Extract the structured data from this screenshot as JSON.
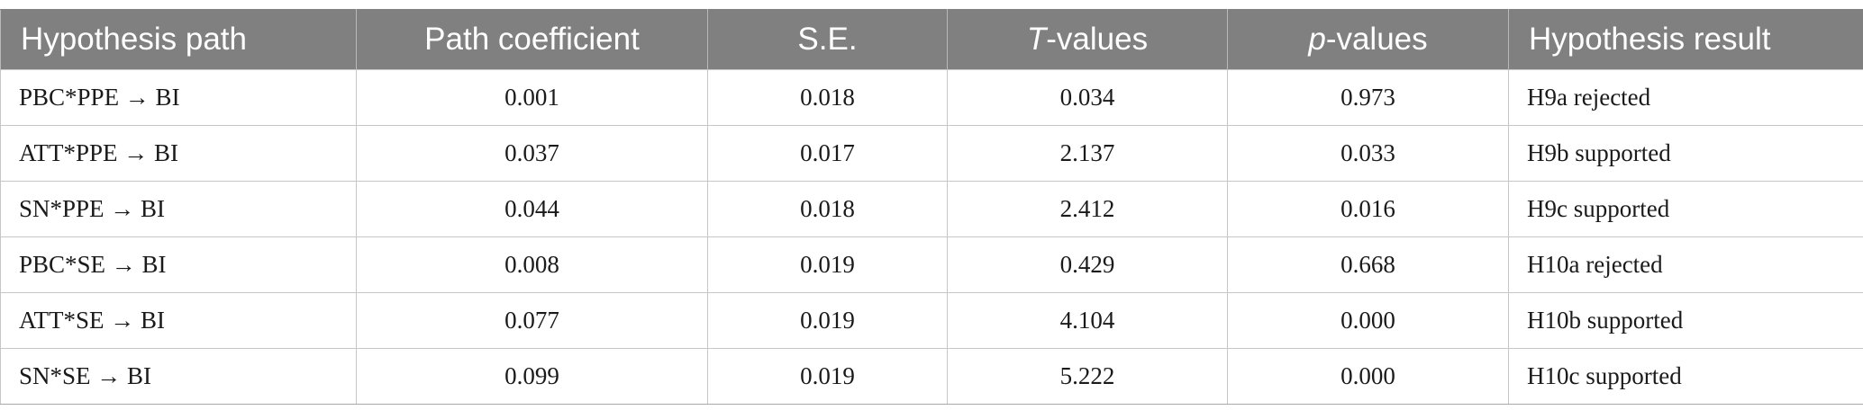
{
  "header": {
    "hypothesis_path": "Hypothesis path",
    "path_coefficient": "Path coefficient",
    "se": "S.E.",
    "t_values_italic": "T",
    "t_values_rest": "-values",
    "p_values_italic": "p",
    "p_values_rest": "-values",
    "hypothesis_result": "Hypothesis result"
  },
  "rows": [
    {
      "path": "PBC*PPE → BI",
      "coef": "0.001",
      "se": "0.018",
      "t": "0.034",
      "p": "0.973",
      "result": "H9a rejected"
    },
    {
      "path": "ATT*PPE → BI",
      "coef": "0.037",
      "se": "0.017",
      "t": "2.137",
      "p": "0.033",
      "result": "H9b supported"
    },
    {
      "path": "SN*PPE → BI",
      "coef": "0.044",
      "se": "0.018",
      "t": "2.412",
      "p": "0.016",
      "result": "H9c supported"
    },
    {
      "path": "PBC*SE → BI",
      "coef": "0.008",
      "se": "0.019",
      "t": "0.429",
      "p": "0.668",
      "result": "H10a rejected"
    },
    {
      "path": "ATT*SE → BI",
      "coef": "0.077",
      "se": "0.019",
      "t": "4.104",
      "p": "0.000",
      "result": "H10b supported"
    },
    {
      "path": "SN*SE → BI",
      "coef": "0.099",
      "se": "0.019",
      "t": "5.222",
      "p": "0.000",
      "result": "H10c supported"
    }
  ]
}
